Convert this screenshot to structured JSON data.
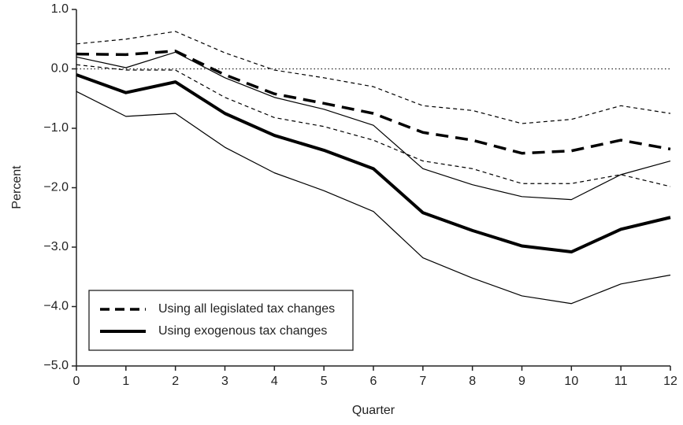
{
  "chart_data": {
    "type": "line",
    "x_label": "Quarter",
    "y_label": "Percent",
    "x": [
      0,
      1,
      2,
      3,
      4,
      5,
      6,
      7,
      8,
      9,
      10,
      11,
      12
    ],
    "xlim": [
      0,
      12
    ],
    "xticks": [
      0,
      1,
      2,
      3,
      4,
      5,
      6,
      7,
      8,
      9,
      10,
      11,
      12
    ],
    "ylim": [
      -5,
      1
    ],
    "yticks": [
      {
        "value": 1,
        "label": "1.0"
      },
      {
        "value": 0,
        "label": "0.0"
      },
      {
        "value": -1,
        "label": "−1.0"
      },
      {
        "value": -2,
        "label": "−2.0"
      },
      {
        "value": -3,
        "label": "−3.0"
      },
      {
        "value": -4,
        "label": "−4.0"
      },
      {
        "value": -5,
        "label": "−5.0"
      }
    ],
    "zero_line": true,
    "legend": "lower left",
    "series": [
      {
        "name": "Using all legislated tax changes",
        "color": "#000000",
        "dashed": true,
        "width": 3.5,
        "values": [
          0.25,
          0.24,
          0.3,
          -0.1,
          -0.42,
          -0.58,
          -0.75,
          -1.07,
          -1.2,
          -1.42,
          -1.38,
          -1.2,
          -1.35
        ]
      },
      {
        "name": "Using exogenous tax changes",
        "color": "#000000",
        "dashed": false,
        "width": 4,
        "values": [
          -0.1,
          -0.4,
          -0.22,
          -0.75,
          -1.12,
          -1.37,
          -1.68,
          -2.42,
          -2.72,
          -2.98,
          -3.08,
          -2.7,
          -2.5
        ]
      },
      {
        "color": "#000000",
        "dashed": true,
        "width": 1.2,
        "values": [
          0.42,
          0.5,
          0.63,
          0.27,
          -0.02,
          -0.15,
          -0.3,
          -0.62,
          -0.7,
          -0.92,
          -0.85,
          -0.62,
          -0.75
        ]
      },
      {
        "color": "#000000",
        "dashed": true,
        "width": 1.2,
        "values": [
          0.07,
          -0.02,
          -0.02,
          -0.48,
          -0.82,
          -0.97,
          -1.2,
          -1.55,
          -1.68,
          -1.93,
          -1.93,
          -1.78,
          -1.98
        ]
      },
      {
        "color": "#000000",
        "dashed": false,
        "width": 1.2,
        "values": [
          0.2,
          0.02,
          0.28,
          -0.15,
          -0.48,
          -0.68,
          -0.95,
          -1.68,
          -1.95,
          -2.15,
          -2.2,
          -1.78,
          -1.55
        ]
      },
      {
        "color": "#000000",
        "dashed": false,
        "width": 1.2,
        "values": [
          -0.38,
          -0.8,
          -0.75,
          -1.32,
          -1.75,
          -2.05,
          -2.4,
          -3.18,
          -3.52,
          -3.82,
          -3.95,
          -3.62,
          -3.47
        ]
      }
    ]
  }
}
